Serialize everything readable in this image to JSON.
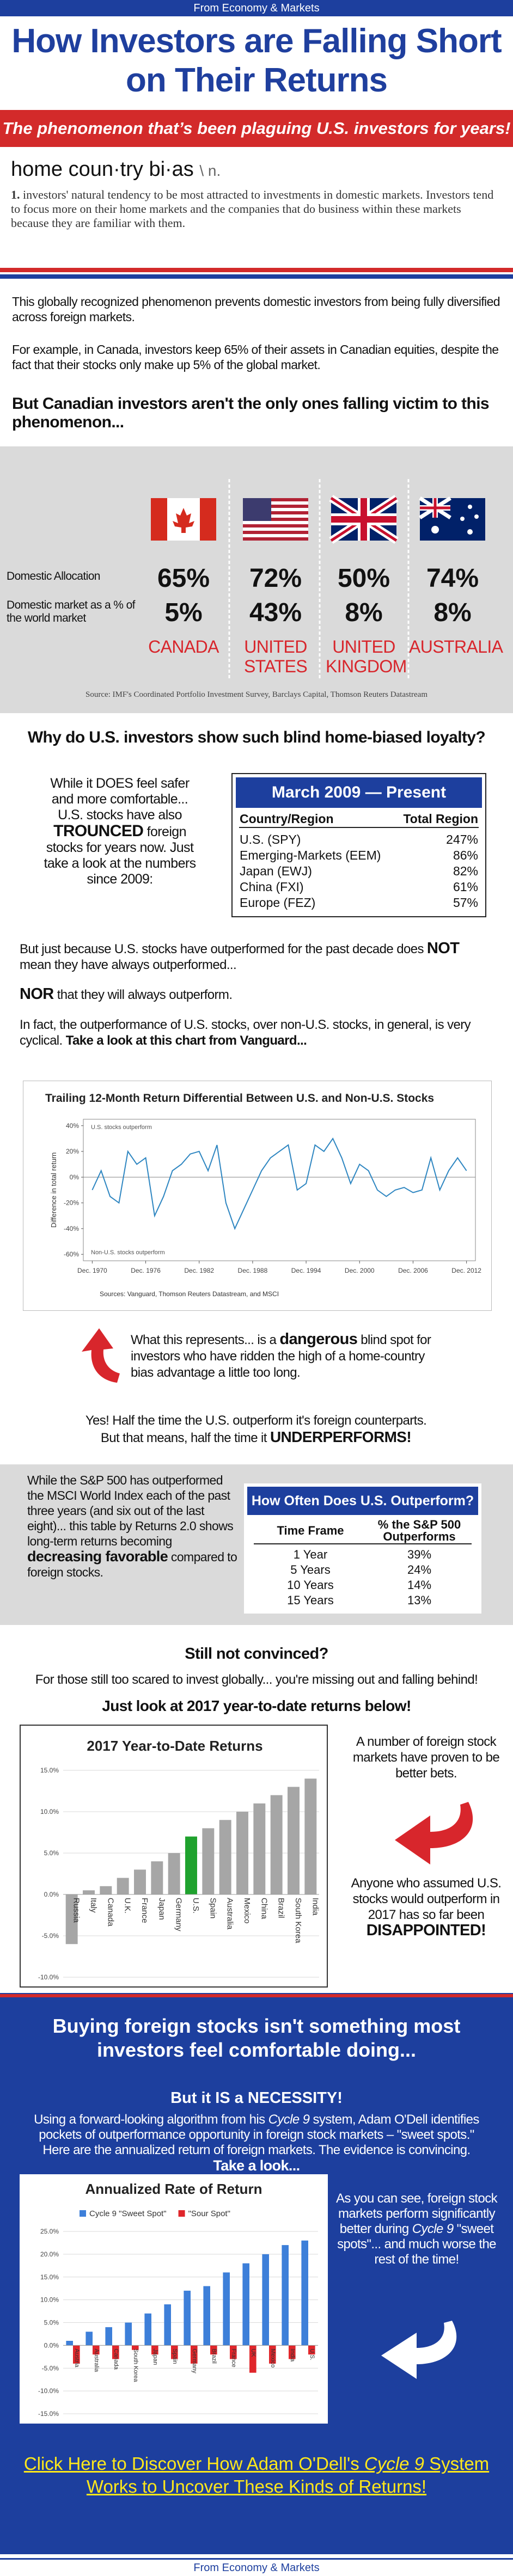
{
  "header": {
    "source_top": "From Economy & Markets",
    "title": "How Investors are Falling Short on Their Returns",
    "banner": "The phenomenon that’s been plaguing U.S. investors for years!"
  },
  "definition": {
    "term": "home coun·try bi·as",
    "pos": "\\ n.",
    "number": "1.",
    "text": "investors' natural tendency to be most attracted to investments in domestic markets. Investors tend to focus more on their home markets and the companies that do business within these markets because they are familiar with them."
  },
  "intro": {
    "p1": "This globally recognized phenomenon prevents domestic investors from being fully diversified across foreign markets.",
    "p2": "For example, in Canada, investors keep 65% of their assets in Canadian equities, despite the fact that their stocks only make up 5% of the global market.",
    "p3": "But Canadian investors aren't the only ones falling victim to this phenomenon..."
  },
  "comparison": {
    "row_labels": [
      "Domestic Allocation",
      "Domestic market as a % of the world market"
    ],
    "countries": [
      "CANADA",
      "UNITED STATES",
      "UNITED KINGDOM",
      "AUSTRALIA"
    ],
    "domestic_allocation": [
      "65%",
      "72%",
      "50%",
      "74%"
    ],
    "world_share": [
      "5%",
      "43%",
      "8%",
      "8%"
    ],
    "source": "Source: IMF's Coordinated Portfolio Investment Survey, Barclays Capital, Thomson Reuters Datastream"
  },
  "loyalty": {
    "heading": "Why do U.S. investors show such blind home-biased loyalty?",
    "side_text": [
      "While it DOES feel safer and more comfortable... U.S. stocks have also ",
      "TROUNCED",
      " foreign stocks for years now. Just take a look at the numbers since 2009:"
    ],
    "table": {
      "title": "March 2009 — Present",
      "columns": [
        "Country/Region",
        "Total Region"
      ],
      "rows": [
        [
          "U.S. (SPY)",
          "247%"
        ],
        [
          "Emerging-Markets (EEM)",
          "86%"
        ],
        [
          "Japan (EWJ)",
          "82%"
        ],
        [
          "China (FXI)",
          "61%"
        ],
        [
          "Europe (FEZ)",
          "57%"
        ]
      ]
    }
  },
  "outperform": {
    "p1": [
      "But just because U.S. stocks have outperformed for the past decade does ",
      "NOT",
      " mean they have always outperformed..."
    ],
    "p2": [
      "NOR",
      " that they will always outperform."
    ],
    "p3": [
      "In fact, the outperformance of U.S. stocks, over non-U.S. stocks, in general, is very cyclical. ",
      "Take a look at this chart from Vanguard..."
    ]
  },
  "blind_spot": {
    "text": [
      "What this represents... is a ",
      "dangerous",
      " blind spot for investors who have ridden the high of a home-country bias advantage a little too long."
    ],
    "conclusion": [
      "Yes! Half the time the U.S. outperform it's foreign counterparts. But that means, half the time it ",
      "UNDERPERFORMS!"
    ]
  },
  "frequency": {
    "side_text": [
      "While the S&P 500 has outperformed the MSCI World Index each of the past three years (and six out of the last eight)... this table by Returns 2.0 shows long-term returns becoming ",
      "decreasing favorable",
      " compared to foreign stocks."
    ],
    "table": {
      "title": "How Often Does U.S. Outperform?",
      "columns": [
        "Time Frame",
        "% the S&P 500 Outperforms"
      ],
      "rows": [
        [
          "1 Year",
          "39%"
        ],
        [
          "5 Years",
          "24%"
        ],
        [
          "10 Years",
          "14%"
        ],
        [
          "15 Years",
          "13%"
        ]
      ]
    }
  },
  "ytd": {
    "heading": "Still not convinced?",
    "p1": "For those still too scared to invest globally... you're missing out and falling behind!",
    "p2": "Just look at 2017 year-to-date returns below!",
    "note1": "A number of foreign stock markets have proven to be better bets.",
    "note2": [
      "Anyone who assumed U.S. stocks would outperform in 2017 has so far been ",
      "DISAPPOINTED!"
    ]
  },
  "cycle9": {
    "heading": "Buying foreign stocks isn't something most investors feel comfortable doing...",
    "subheading": "But it IS a NECESSITY!",
    "text": [
      "Using a forward-looking algorithm from his ",
      "Cycle 9",
      " system, Adam O'Dell identifies pockets of outperformance opportunity in foreign stock markets – \"sweet spots.\" Here are the annualized return of foreign markets. The evidence is convincing. ",
      "Take a look..."
    ],
    "note": [
      "As you can see, foreign stock markets perform significantly better during ",
      "Cycle 9",
      " \"sweet spots\"... and much worse the rest of the time!"
    ],
    "cta": [
      "Click Here to Discover How Adam O'Dell's ",
      "Cycle 9",
      " System Works to Uncover These Kinds of Returns!"
    ]
  },
  "footer": "From Economy & Markets",
  "chart_data": [
    {
      "type": "line",
      "title": "Trailing 12-Month Return Differential Between U.S. and Non-U.S. Stocks",
      "y_label": "Difference in total return",
      "annotations": [
        "U.S. stocks outperform",
        "Non-U.S. stocks outperform"
      ],
      "source": "Sources: Vanguard, Thomson Reuters Datastream, and MSCI",
      "color": "#2e86c1",
      "x": [
        1970,
        1971,
        1972,
        1973,
        1974,
        1975,
        1976,
        1977,
        1978,
        1979,
        1980,
        1981,
        1982,
        1983,
        1984,
        1985,
        1986,
        1987,
        1988,
        1989,
        1990,
        1991,
        1992,
        1993,
        1994,
        1995,
        1996,
        1997,
        1998,
        1999,
        2000,
        2001,
        2002,
        2003,
        2004,
        2005,
        2006,
        2007,
        2008,
        2009,
        2010,
        2011,
        2012
      ],
      "values": [
        -10,
        5,
        -15,
        -20,
        20,
        10,
        15,
        -30,
        -15,
        5,
        10,
        18,
        20,
        5,
        25,
        -20,
        -40,
        -25,
        -10,
        5,
        15,
        20,
        25,
        -10,
        -5,
        25,
        20,
        30,
        15,
        -5,
        10,
        5,
        -10,
        -15,
        -10,
        -8,
        -12,
        -10,
        15,
        -10,
        5,
        15,
        5
      ],
      "xlim": [
        1969,
        2013
      ],
      "xticks": [
        {
          "value": 1970,
          "label": "Dec. 1970"
        },
        {
          "value": 1976,
          "label": "Dec. 1976"
        },
        {
          "value": 1982,
          "label": "Dec. 1982"
        },
        {
          "value": 1988,
          "label": "Dec. 1988"
        },
        {
          "value": 1994,
          "label": "Dec. 1994"
        },
        {
          "value": 2000,
          "label": "Dec. 2000"
        },
        {
          "value": 2006,
          "label": "Dec. 2006"
        },
        {
          "value": 2012,
          "label": "Dec. 2012"
        }
      ],
      "ylim": [
        -65,
        45
      ],
      "yticks": [
        {
          "value": 40,
          "label": "40%"
        },
        {
          "value": 20,
          "label": "20%"
        },
        {
          "value": 0,
          "label": "0%"
        },
        {
          "value": -20,
          "label": "-20%"
        },
        {
          "value": -40,
          "label": "-40%"
        },
        {
          "value": -60,
          "label": "-60%"
        }
      ],
      "grid": false
    },
    {
      "type": "bar",
      "title": "2017 Year-to-Date Returns",
      "categories": [
        "Russia",
        "Italy",
        "Canada",
        "U.K.",
        "France",
        "Japan",
        "Germany",
        "U.S.",
        "Spain",
        "Australia",
        "Mexico",
        "China",
        "Brazil",
        "South Korea",
        "India"
      ],
      "values": [
        -6,
        0.5,
        1,
        2,
        3,
        4,
        5,
        7,
        8,
        9,
        10,
        11,
        12,
        13,
        14
      ],
      "colors": [
        "#a6a6a6",
        "#a6a6a6",
        "#a6a6a6",
        "#a6a6a6",
        "#a6a6a6",
        "#a6a6a6",
        "#a6a6a6",
        "#1fa22e",
        "#a6a6a6",
        "#a6a6a6",
        "#a6a6a6",
        "#a6a6a6",
        "#a6a6a6",
        "#a6a6a6",
        "#a6a6a6"
      ],
      "ylim": [
        -10,
        15
      ],
      "yticks": [
        {
          "value": 15,
          "label": "15.0%"
        },
        {
          "value": 10,
          "label": "10.0%"
        },
        {
          "value": 5,
          "label": "5.0%"
        },
        {
          "value": 0,
          "label": "0.0%"
        },
        {
          "value": -5,
          "label": "-5.0%"
        },
        {
          "value": -10,
          "label": "-10.0%"
        }
      ],
      "grid": true
    },
    {
      "type": "bar",
      "title": "Annualized Rate of Return",
      "categories": [
        "Austria",
        "Australia",
        "Canada",
        "South Korea",
        "Japan",
        "Spain",
        "Germany",
        "Brazil",
        "France",
        "UK",
        "Mexico",
        "India",
        "U.S."
      ],
      "series": [
        {
          "name": "Cycle 9 \"Sweet Spot\"",
          "color": "#3d7fd9",
          "values": [
            1,
            3,
            4,
            5,
            7,
            9,
            12,
            13,
            16,
            18,
            20,
            22,
            23
          ]
        },
        {
          "name": "\"Sour Spot\"",
          "color": "#e0262b",
          "values": [
            -4,
            -2,
            -3,
            -1,
            -2,
            -3,
            -4,
            -2,
            -3,
            -6,
            -4,
            -3,
            -2
          ]
        }
      ],
      "ylim": [
        -15,
        25
      ],
      "yticks": [
        {
          "value": 25,
          "label": "25.0%"
        },
        {
          "value": 20,
          "label": "20.0%"
        },
        {
          "value": 15,
          "label": "15.0%"
        },
        {
          "value": 10,
          "label": "10.0%"
        },
        {
          "value": 5,
          "label": "5.0%"
        },
        {
          "value": 0,
          "label": "0.0%"
        },
        {
          "value": -5,
          "label": "-5.0%"
        },
        {
          "value": -10,
          "label": "-10.0%"
        },
        {
          "value": -15,
          "label": "-15.0%"
        }
      ],
      "grid": true,
      "legend": "top"
    }
  ]
}
